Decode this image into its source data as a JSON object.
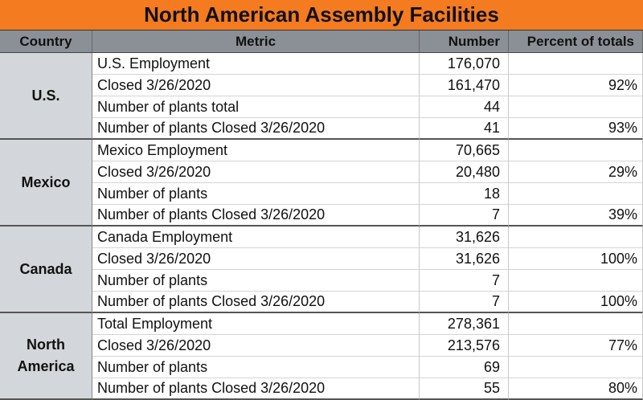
{
  "title": "North American Assembly Facilities",
  "table": {
    "columns": [
      "Country",
      "Metric",
      "Number",
      "Percent of totals"
    ],
    "groups": [
      {
        "country": "U.S.",
        "rows": [
          {
            "metric": "U.S. Employment",
            "number": "176,070"
          },
          {
            "metric": "Closed 3/26/2020",
            "number": "161,470",
            "percent": "92%"
          },
          {
            "metric": "Number of plants total",
            "number": "44"
          },
          {
            "metric": "Number of plants Closed 3/26/2020",
            "number": "41",
            "percent": "93%"
          }
        ]
      },
      {
        "country": "Mexico",
        "rows": [
          {
            "metric": "Mexico Employment",
            "number": "70,665"
          },
          {
            "metric": "Closed 3/26/2020",
            "number": "20,480",
            "percent": "29%"
          },
          {
            "metric": "Number of plants",
            "number": "18"
          },
          {
            "metric": "Number of plants Closed 3/26/2020",
            "number": "7",
            "percent": "39%"
          }
        ]
      },
      {
        "country": "Canada",
        "rows": [
          {
            "metric": "Canada Employment",
            "number": "31,626"
          },
          {
            "metric": "Closed 3/26/2020",
            "number": "31,626",
            "percent": "100%"
          },
          {
            "metric": "Number of plants",
            "number": "7"
          },
          {
            "metric": "Number of plants Closed 3/26/2020",
            "number": "7",
            "percent": "100%"
          }
        ]
      },
      {
        "country": "North America",
        "rows": [
          {
            "metric": "Total Employment",
            "number": "278,361"
          },
          {
            "metric": "Closed 3/26/2020",
            "number": "213,576",
            "percent": "77%"
          },
          {
            "metric": "Number of plants",
            "number": "69"
          },
          {
            "metric": "Number of plants Closed 3/26/2020",
            "number": "55",
            "percent": "80%"
          }
        ]
      }
    ]
  }
}
